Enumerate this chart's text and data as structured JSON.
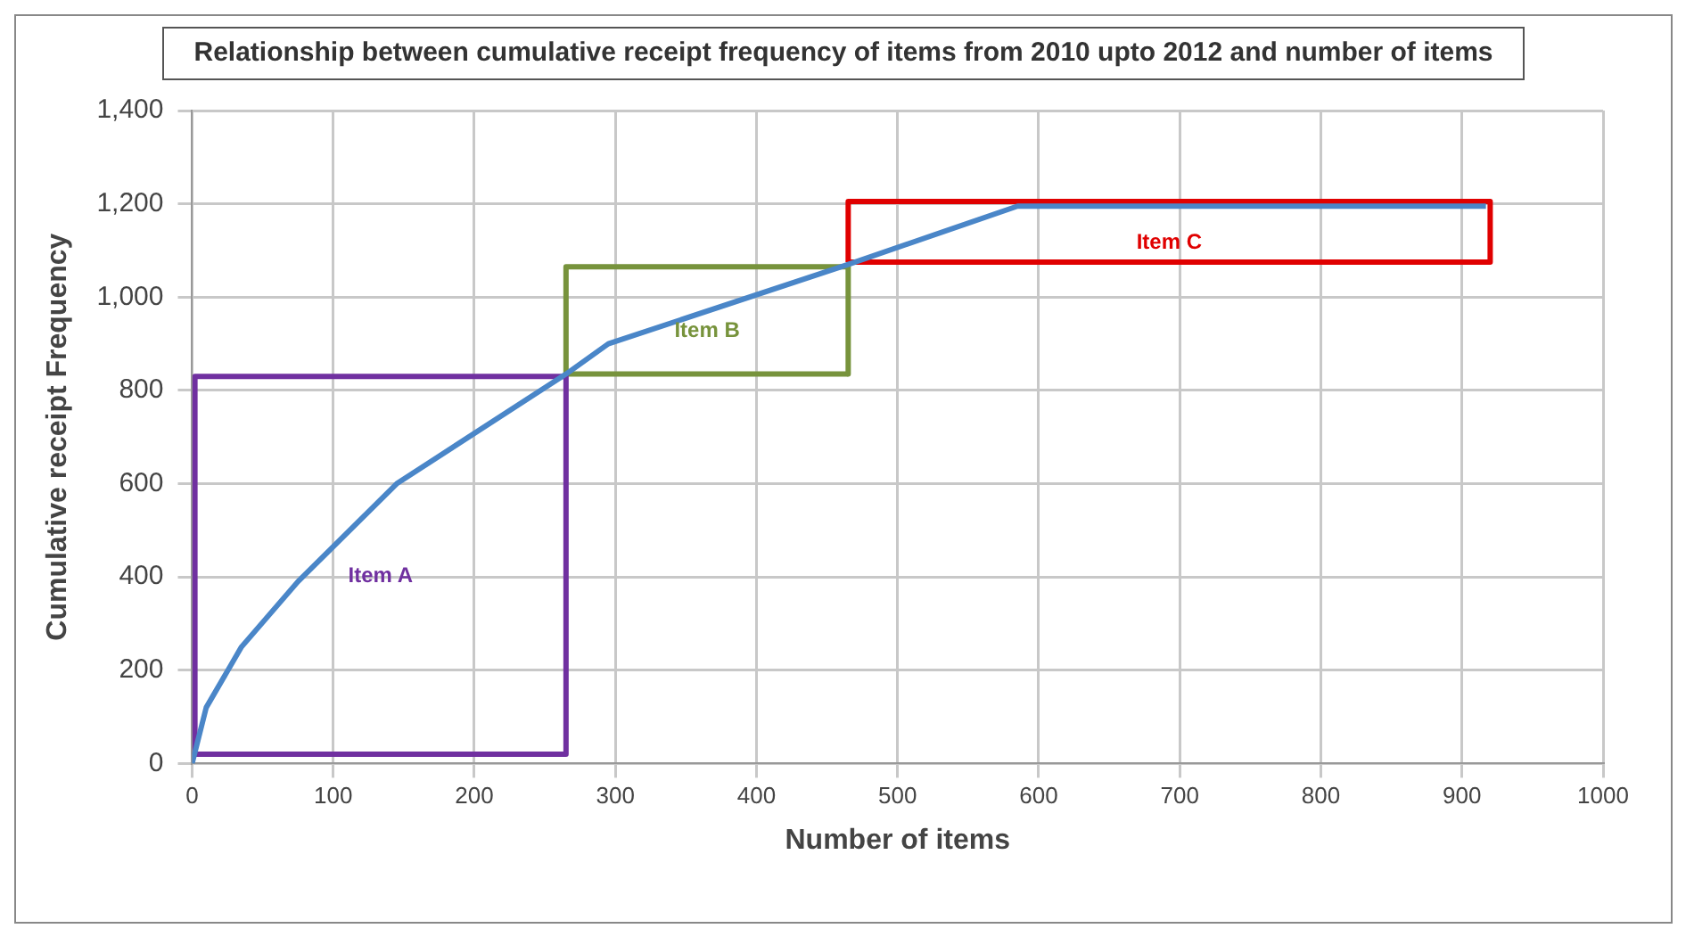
{
  "chart_data": {
    "type": "line",
    "title": "Relationship between cumulative receipt frequency of items from 2010 upto 2012 and number of items",
    "xlabel": "Number of items",
    "ylabel": "Cumulative receipt Frequency",
    "xlim": [
      0,
      1000
    ],
    "xticks": [
      0,
      100,
      200,
      300,
      400,
      500,
      600,
      700,
      800,
      900,
      1000
    ],
    "ylim": [
      0,
      1400
    ],
    "yticks": [
      0,
      200,
      400,
      600,
      800,
      {
        "value": 1000,
        "label": "1,000"
      },
      {
        "value": 1200,
        "label": "1,200"
      },
      {
        "value": 1400,
        "label": "1,400"
      }
    ],
    "grid": true,
    "legend": false,
    "marker": "none",
    "line_style": "solid",
    "series": [
      {
        "color": "#4a86c8",
        "x": [
          0,
          10,
          35,
          75,
          145,
          265,
          295,
          465,
          585,
          917
        ],
        "values": [
          0,
          120,
          250,
          390,
          600,
          835,
          900,
          1070,
          1195,
          1195
        ]
      },
      {
        "name": "Item A",
        "color": "#7030a0",
        "x": [
          2,
          2,
          265,
          265
        ],
        "values": [
          20,
          830,
          830,
          20
        ]
      },
      {
        "color": "#7030a0",
        "x": [
          2,
          265
        ],
        "values": [
          20,
          20
        ]
      },
      {
        "name": "Item B",
        "color": "#77933c",
        "x": [
          265,
          265,
          465,
          465
        ],
        "values": [
          835,
          1065,
          1065,
          835
        ]
      },
      {
        "color": "#77933c",
        "x": [
          265,
          465
        ],
        "values": [
          835,
          835
        ]
      },
      {
        "name": "Item C",
        "color": "#e00000",
        "x": [
          465,
          465,
          920,
          920
        ],
        "values": [
          1075,
          1205,
          1205,
          1075
        ]
      },
      {
        "color": "#e00000",
        "x": [
          465,
          920
        ],
        "values": [
          1075,
          1075
        ]
      }
    ]
  }
}
